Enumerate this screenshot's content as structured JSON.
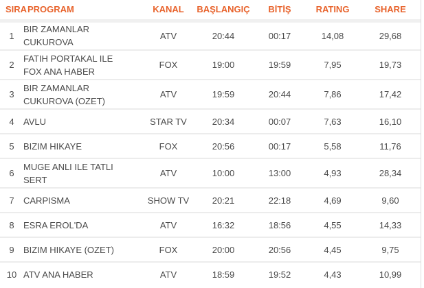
{
  "colors": {
    "header_text": "#e8632c",
    "body_text": "#4a4a4a",
    "row_divider": "#ececec",
    "header_divider": "#f0f0f0",
    "right_border": "#dedede",
    "background": "#ffffff"
  },
  "chart_data": {
    "type": "table",
    "title": "",
    "columns": [
      "SIRA",
      "PROGRAM",
      "KANAL",
      "BAŞLANGIÇ",
      "BİTİŞ",
      "RATING",
      "SHARE"
    ],
    "rows": [
      {
        "sira": "1",
        "program": "BIR ZAMANLAR CUKUROVA",
        "kanal": "ATV",
        "baslangic": "20:44",
        "bitis": "00:17",
        "rating": "14,08",
        "share": "29,68"
      },
      {
        "sira": "2",
        "program": "FATIH PORTAKAL ILE FOX ANA HABER",
        "kanal": "FOX",
        "baslangic": "19:00",
        "bitis": "19:59",
        "rating": "7,95",
        "share": "19,73"
      },
      {
        "sira": "3",
        "program": "BIR ZAMANLAR CUKUROVA (OZET)",
        "kanal": "ATV",
        "baslangic": "19:59",
        "bitis": "20:44",
        "rating": "7,86",
        "share": "17,42"
      },
      {
        "sira": "4",
        "program": "AVLU",
        "kanal": "STAR TV",
        "baslangic": "20:34",
        "bitis": "00:07",
        "rating": "7,63",
        "share": "16,10"
      },
      {
        "sira": "5",
        "program": "BIZIM HIKAYE",
        "kanal": "FOX",
        "baslangic": "20:56",
        "bitis": "00:17",
        "rating": "5,58",
        "share": "11,76"
      },
      {
        "sira": "6",
        "program": "MUGE ANLI ILE TATLI SERT",
        "kanal": "ATV",
        "baslangic": "10:00",
        "bitis": "13:00",
        "rating": "4,93",
        "share": "28,34"
      },
      {
        "sira": "7",
        "program": "CARPISMA",
        "kanal": "SHOW TV",
        "baslangic": "20:21",
        "bitis": "22:18",
        "rating": "4,69",
        "share": "9,60"
      },
      {
        "sira": "8",
        "program": "ESRA EROL'DA",
        "kanal": "ATV",
        "baslangic": "16:32",
        "bitis": "18:56",
        "rating": "4,55",
        "share": "14,33"
      },
      {
        "sira": "9",
        "program": "BIZIM HIKAYE (OZET)",
        "kanal": "FOX",
        "baslangic": "20:00",
        "bitis": "20:56",
        "rating": "4,45",
        "share": "9,75"
      },
      {
        "sira": "10",
        "program": "ATV ANA HABER",
        "kanal": "ATV",
        "baslangic": "18:59",
        "bitis": "19:52",
        "rating": "4,43",
        "share": "10,99"
      }
    ]
  }
}
